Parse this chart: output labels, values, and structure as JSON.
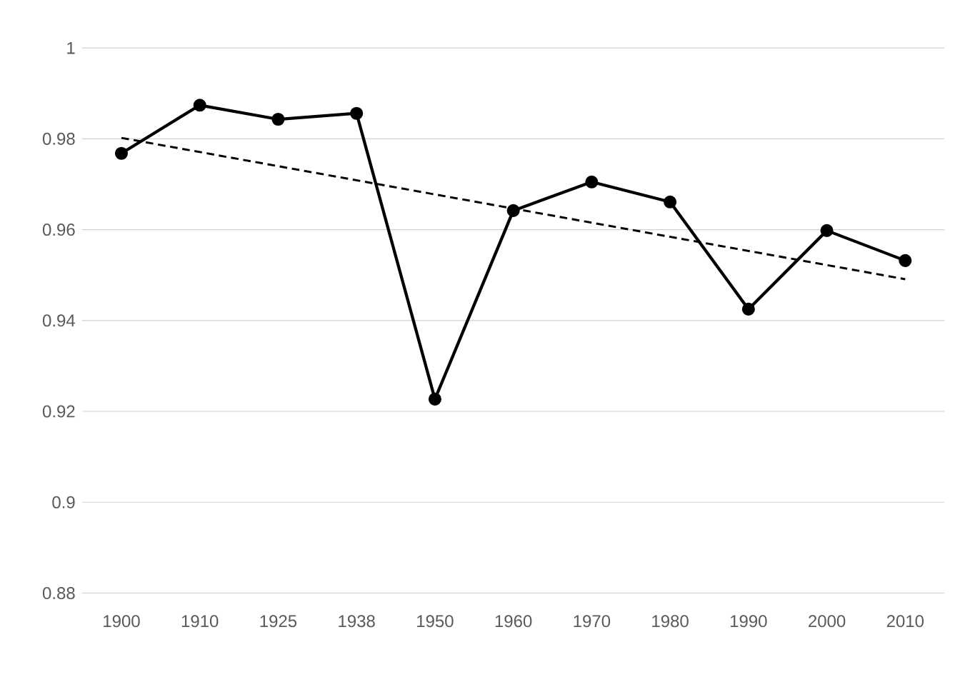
{
  "chart_data": {
    "type": "line",
    "categories": [
      "1900",
      "1910",
      "1925",
      "1938",
      "1950",
      "1960",
      "1970",
      "1980",
      "1990",
      "2000",
      "2010"
    ],
    "series": [
      {
        "color": "#000000",
        "marker": "circle",
        "line_style": "solid",
        "values": [
          0.9768,
          0.9874,
          0.9843,
          0.9856,
          0.9227,
          0.9642,
          0.9705,
          0.9661,
          0.9425,
          0.9598,
          0.9532
        ]
      },
      {
        "color": "#000000",
        "marker": "none",
        "line_style": "dashed",
        "values": [
          0.9802,
          null,
          null,
          null,
          null,
          null,
          null,
          null,
          null,
          null,
          0.9491
        ]
      }
    ],
    "ylim": [
      0.88,
      1
    ],
    "yticks": [
      0.88,
      0.9,
      0.92,
      0.94,
      0.96,
      0.98,
      1
    ],
    "grid": "y"
  }
}
